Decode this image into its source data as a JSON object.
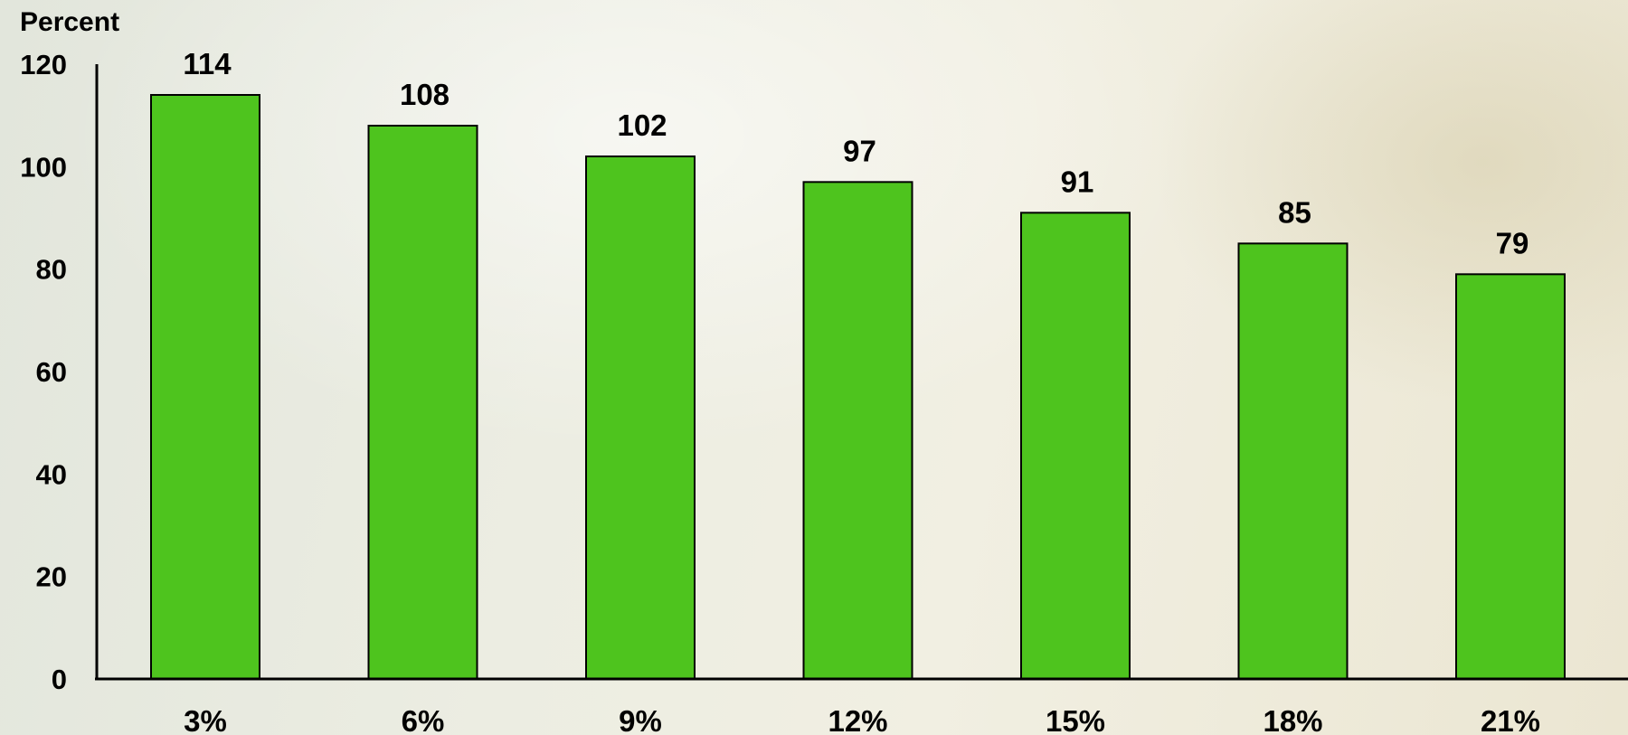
{
  "chart_data": {
    "type": "bar",
    "categories": [
      "3%",
      "6%",
      "9%",
      "12%",
      "15%",
      "18%",
      "21%"
    ],
    "values": [
      114,
      108,
      102,
      97,
      91,
      85,
      79
    ],
    "data_labels": [
      "114",
      "108",
      "102",
      "97",
      "91",
      "85",
      "79"
    ],
    "ylabel": "Percent",
    "xlabel": "",
    "ylim": [
      0,
      120
    ],
    "yticks": [
      "0",
      "20",
      "40",
      "60",
      "80",
      "100",
      "120"
    ],
    "ytick_values": [
      0,
      20,
      40,
      60,
      80,
      100,
      120
    ],
    "grid": false,
    "legend": "none",
    "bar_color": "#4ec41e",
    "bar_edge_color": "#000000"
  }
}
